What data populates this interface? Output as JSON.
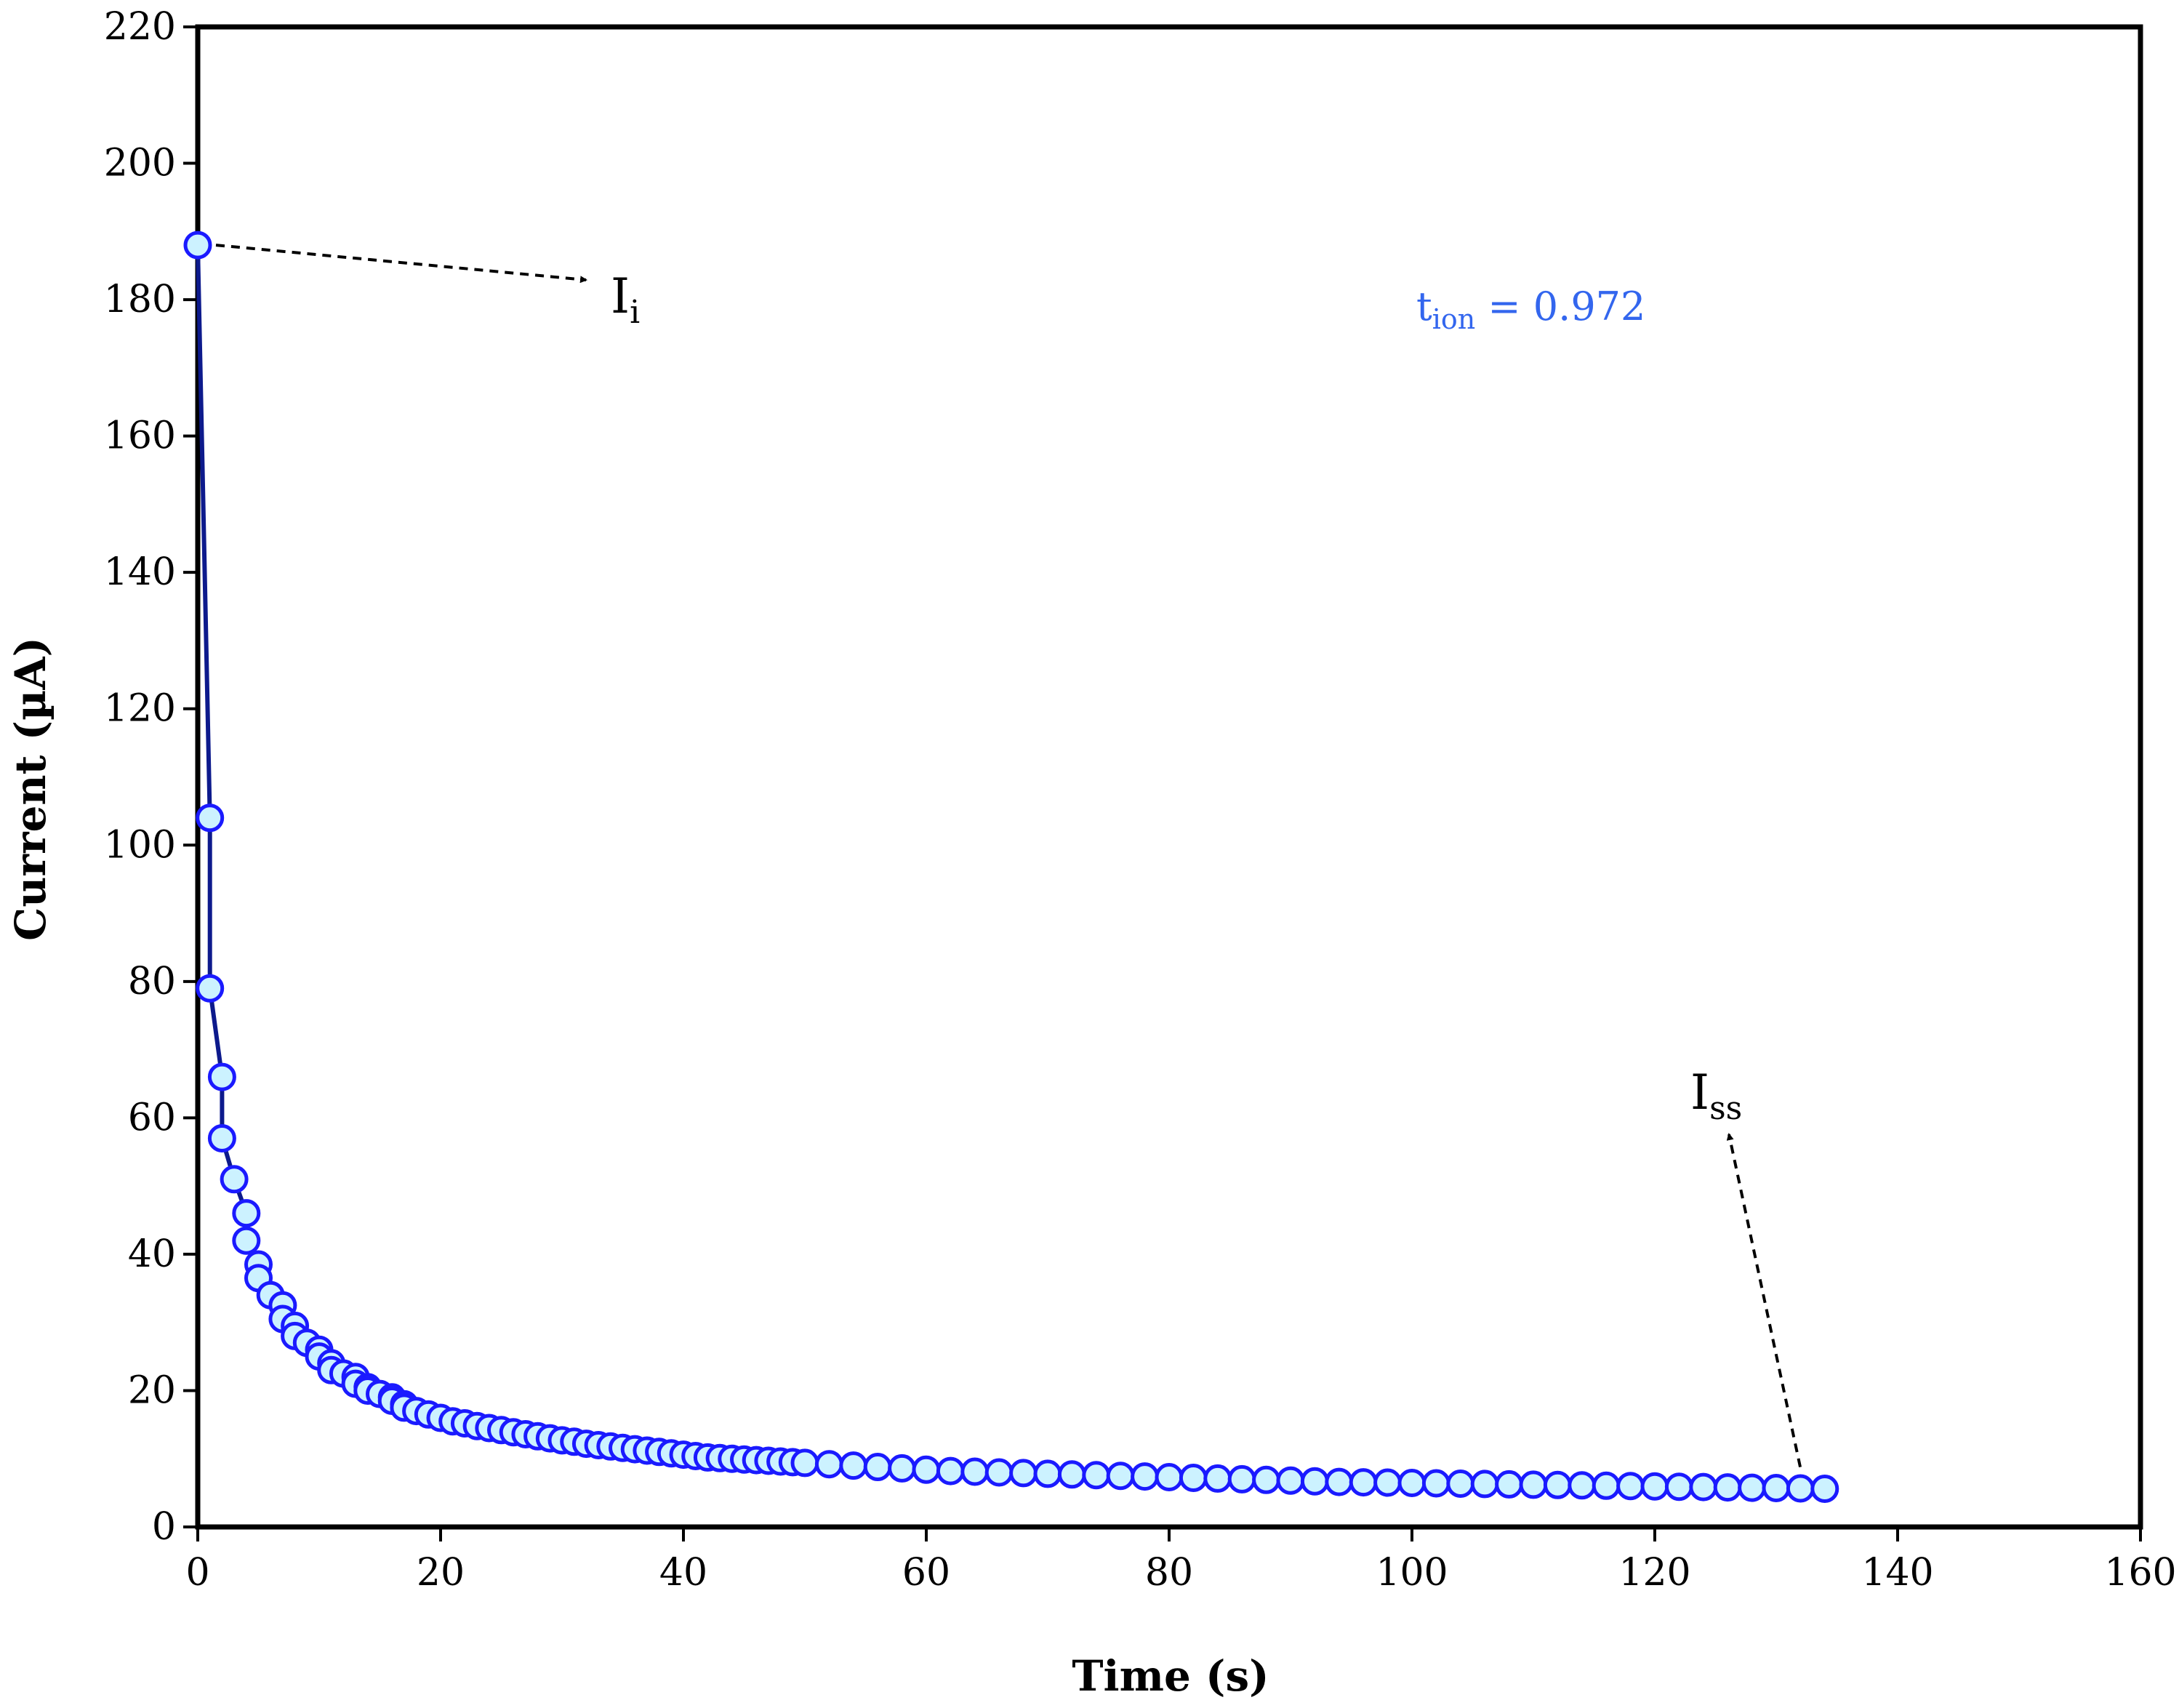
{
  "chart_data": {
    "type": "scatter",
    "title": "",
    "xlabel": "Time (s)",
    "ylabel": "Current (µA)",
    "xlim": [
      0,
      160
    ],
    "ylim": [
      0,
      220
    ],
    "xticks": [
      0,
      20,
      40,
      60,
      80,
      100,
      120,
      140,
      160
    ],
    "yticks": [
      0,
      20,
      40,
      60,
      80,
      100,
      120,
      140,
      160,
      180,
      200,
      220
    ],
    "grid": false,
    "legend": "none",
    "colors": {
      "line": "#0d1a8c",
      "marker_edge": "#1a1aff",
      "marker_fill": "#ccf2ff",
      "annotation_text": "#3366ee"
    },
    "series": [
      {
        "name": "Current",
        "style": "line+markers",
        "x": [
          0,
          1,
          1,
          2,
          2,
          3,
          4,
          4,
          5,
          5,
          6,
          7,
          7,
          8,
          8,
          9,
          10,
          10,
          11,
          11,
          12,
          13,
          13,
          14,
          14,
          15,
          16,
          16,
          17,
          17,
          18,
          19,
          20,
          21,
          22,
          23,
          24,
          25,
          26,
          27,
          28,
          29,
          30,
          31,
          32,
          33,
          34,
          35,
          36,
          37,
          38,
          39,
          40,
          41,
          42,
          43,
          44,
          45,
          46,
          47,
          48,
          49,
          50,
          52,
          54,
          56,
          58,
          60,
          62,
          64,
          66,
          68,
          70,
          72,
          74,
          76,
          78,
          80,
          82,
          84,
          86,
          88,
          90,
          92,
          94,
          96,
          98,
          100,
          102,
          104,
          106,
          108,
          110,
          112,
          114,
          116,
          118,
          120,
          122,
          124,
          126,
          128,
          130,
          132,
          134
        ],
        "values": [
          188,
          104,
          79,
          66,
          57,
          51,
          46,
          42,
          38.5,
          36.5,
          34,
          32.5,
          30.5,
          29.5,
          28,
          27,
          26,
          25,
          24,
          23,
          22.5,
          22,
          21,
          20.5,
          20,
          19.5,
          19,
          18.5,
          18,
          17.5,
          17,
          16.5,
          16,
          15.5,
          15.2,
          14.8,
          14.5,
          14.2,
          13.9,
          13.6,
          13.3,
          13,
          12.7,
          12.5,
          12.2,
          12,
          11.8,
          11.6,
          11.4,
          11.2,
          11,
          10.8,
          10.6,
          10.4,
          10.2,
          10.1,
          10,
          9.9,
          9.8,
          9.7,
          9.6,
          9.5,
          9.4,
          9.2,
          9,
          8.8,
          8.6,
          8.4,
          8.2,
          8.1,
          8,
          7.9,
          7.8,
          7.7,
          7.6,
          7.5,
          7.4,
          7.3,
          7.2,
          7.1,
          7,
          6.9,
          6.8,
          6.7,
          6.6,
          6.55,
          6.5,
          6.45,
          6.4,
          6.35,
          6.3,
          6.25,
          6.2,
          6.15,
          6.1,
          6.05,
          6,
          5.95,
          5.9,
          5.85,
          5.8,
          5.75,
          5.7,
          5.65,
          5.6
        ]
      }
    ],
    "annotations": [
      {
        "label": "I",
        "sub": "i",
        "at": [
          0,
          188
        ]
      },
      {
        "label": "I",
        "sub": "ss",
        "at": [
          131.5,
          5.8
        ]
      },
      {
        "label": "t",
        "sub": "ion",
        "text": " = 0.972"
      }
    ]
  }
}
